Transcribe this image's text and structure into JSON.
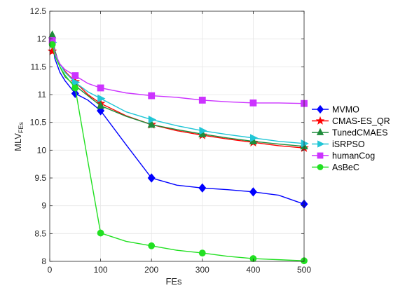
{
  "chart_data": {
    "type": "line",
    "title": "",
    "xlabel": "FEs",
    "ylabel_main": "MLV",
    "ylabel_sub": "FEs",
    "xlim": [
      0,
      500
    ],
    "ylim": [
      8,
      12.5
    ],
    "x_ticks": [
      0,
      100,
      200,
      300,
      400,
      500
    ],
    "y_ticks": [
      8,
      8.5,
      9,
      9.5,
      10,
      10.5,
      11,
      11.5,
      12,
      12.5
    ],
    "grid": true,
    "legend_position": "right",
    "series": [
      {
        "name": "MVMO",
        "color": "#0000ff",
        "marker": "diamond",
        "x": [
          5,
          10,
          20,
          30,
          50,
          75,
          100,
          150,
          200,
          250,
          300,
          350,
          400,
          450,
          500
        ],
        "y": [
          11.95,
          11.65,
          11.4,
          11.25,
          11.02,
          10.9,
          10.71,
          10.1,
          9.5,
          9.37,
          9.32,
          9.29,
          9.25,
          9.19,
          9.03
        ],
        "marker_x": [
          50,
          100,
          200,
          300,
          400,
          500
        ],
        "marker_y": [
          11.02,
          10.71,
          9.5,
          9.32,
          9.25,
          9.03
        ]
      },
      {
        "name": "CMAS-ES_QR",
        "color": "#ff0000",
        "marker": "star",
        "x": [
          5,
          10,
          20,
          30,
          50,
          75,
          100,
          150,
          200,
          250,
          300,
          350,
          400,
          450,
          500
        ],
        "y": [
          11.78,
          11.72,
          11.55,
          11.42,
          11.23,
          11.0,
          10.84,
          10.62,
          10.46,
          10.35,
          10.27,
          10.2,
          10.14,
          10.08,
          10.04
        ],
        "marker_x": [
          5,
          50,
          100,
          200,
          300,
          400,
          500
        ],
        "marker_y": [
          11.78,
          11.23,
          10.84,
          10.46,
          10.27,
          10.14,
          10.04
        ]
      },
      {
        "name": "TunedCMAES",
        "color": "#1f8c3b",
        "marker": "triangle-up",
        "x": [
          5,
          10,
          20,
          30,
          50,
          75,
          100,
          150,
          200,
          250,
          300,
          350,
          400,
          450,
          500
        ],
        "y": [
          12.07,
          11.8,
          11.5,
          11.32,
          11.16,
          10.98,
          10.8,
          10.61,
          10.46,
          10.37,
          10.29,
          10.22,
          10.16,
          10.11,
          10.07
        ],
        "marker_x": [
          5,
          50,
          100,
          200,
          300,
          400,
          500
        ],
        "marker_y": [
          12.07,
          11.16,
          10.8,
          10.46,
          10.29,
          10.16,
          10.07
        ]
      },
      {
        "name": "iSRPSO",
        "color": "#21c6d6",
        "marker": "triangle-right",
        "x": [
          5,
          10,
          20,
          30,
          50,
          75,
          100,
          150,
          200,
          250,
          300,
          350,
          400,
          450,
          500
        ],
        "y": [
          11.94,
          11.72,
          11.55,
          11.4,
          11.22,
          11.05,
          10.93,
          10.69,
          10.55,
          10.44,
          10.35,
          10.28,
          10.22,
          10.16,
          10.12
        ],
        "marker_x": [
          5,
          50,
          100,
          200,
          300,
          400,
          500
        ],
        "marker_y": [
          11.94,
          11.22,
          10.93,
          10.55,
          10.35,
          10.22,
          10.12
        ]
      },
      {
        "name": "humanCog",
        "color": "#cc33ff",
        "marker": "square",
        "x": [
          5,
          10,
          20,
          30,
          50,
          75,
          100,
          150,
          200,
          250,
          300,
          350,
          400,
          450,
          500
        ],
        "y": [
          11.97,
          11.75,
          11.55,
          11.45,
          11.34,
          11.2,
          11.12,
          11.03,
          10.98,
          10.95,
          10.9,
          10.87,
          10.85,
          10.85,
          10.84
        ],
        "marker_x": [
          5,
          50,
          100,
          200,
          300,
          400,
          500
        ],
        "marker_y": [
          11.97,
          11.34,
          11.12,
          10.98,
          10.9,
          10.85,
          10.84
        ]
      },
      {
        "name": "AsBeC",
        "color": "#22e022",
        "marker": "circle",
        "x": [
          5,
          10,
          20,
          30,
          50,
          75,
          100,
          150,
          200,
          250,
          300,
          350,
          400,
          450,
          500
        ],
        "y": [
          11.9,
          11.7,
          11.5,
          11.35,
          11.12,
          9.8,
          8.51,
          8.36,
          8.28,
          8.2,
          8.15,
          8.09,
          8.05,
          8.03,
          8.01
        ],
        "marker_x": [
          5,
          50,
          100,
          200,
          300,
          400,
          500
        ],
        "marker_y": [
          11.9,
          11.12,
          8.51,
          8.28,
          8.15,
          8.05,
          8.01
        ]
      }
    ]
  }
}
